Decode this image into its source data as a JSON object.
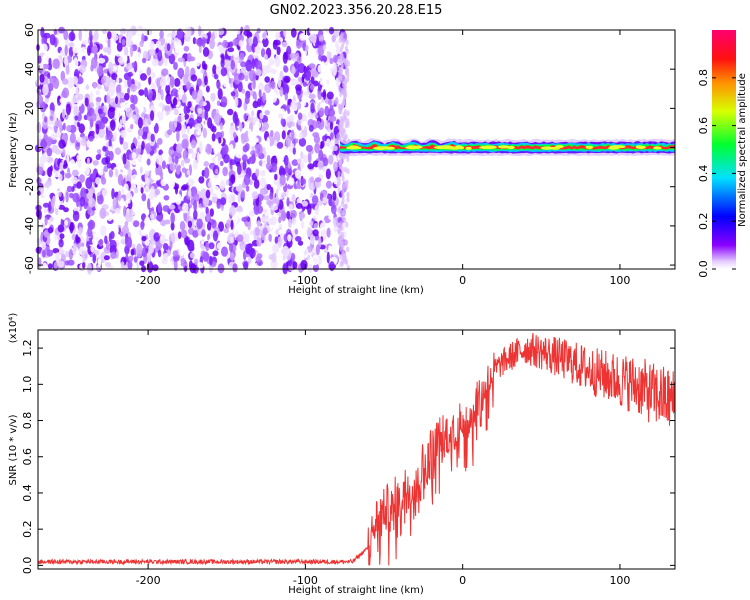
{
  "figure": {
    "title": "GN02.2023.356.20.28.E15"
  },
  "chart_data": [
    {
      "type": "heatmap",
      "xlabel": "Height of straight line (km)",
      "ylabel": "Frequency (Hz)",
      "xlim": [
        -270,
        135
      ],
      "ylim": [
        -62,
        60
      ],
      "x_ticks": [
        -200,
        -100,
        0,
        100
      ],
      "x_tick_labels": [
        "-200",
        "-100",
        "0",
        "100"
      ],
      "y_ticks": [
        -60,
        -40,
        -20,
        0,
        20,
        40,
        60
      ],
      "y_tick_labels": [
        "-60",
        "-40",
        "-20",
        "0",
        "20",
        "40",
        "60"
      ],
      "noise_region_x": [
        -270,
        -75
      ],
      "signal_band": {
        "x_start": -78,
        "x_end": 135,
        "center_frequency": 0,
        "amplitude_profile": [
          {
            "x": -78,
            "amp": 0.5
          },
          {
            "x": -60,
            "amp": 0.7
          },
          {
            "x": -40,
            "amp": 0.8
          },
          {
            "x": -20,
            "amp": 0.85
          },
          {
            "x": 0,
            "amp": 0.95
          },
          {
            "x": 50,
            "amp": 0.98
          },
          {
            "x": 100,
            "amp": 0.95
          },
          {
            "x": 135,
            "amp": 0.9
          }
        ]
      },
      "colorbar": {
        "label": "Normalized spectral amplitude",
        "range": [
          0,
          1
        ],
        "ticks": [
          0.0,
          0.2,
          0.4,
          0.6,
          0.8
        ],
        "tick_labels": [
          "0.0",
          "0.2",
          "0.4",
          "0.6",
          "0.8"
        ]
      }
    },
    {
      "type": "line",
      "xlabel": "Height of straight line (km)",
      "ylabel": "SNR (10 * v/v)",
      "y_multiplier_label": "(x10⁴)",
      "xlim": [
        -270,
        135
      ],
      "ylim": [
        -0.02,
        1.3
      ],
      "x_ticks": [
        -200,
        -100,
        0,
        100
      ],
      "x_tick_labels": [
        "-200",
        "-100",
        "0",
        "100"
      ],
      "y_ticks": [
        0.0,
        0.2,
        0.4,
        0.6,
        0.8,
        1.0,
        1.2
      ],
      "y_tick_labels": [
        "0.0",
        "0.2",
        "0.4",
        "0.6",
        "0.8",
        "1.0",
        "1.2"
      ],
      "series": [
        {
          "color": "#ee3333",
          "x": [
            -270,
            -200,
            -100,
            -70,
            -60,
            -55,
            -50,
            -45,
            -40,
            -35,
            -30,
            -25,
            -20,
            -15,
            -10,
            -5,
            0,
            5,
            10,
            15,
            20,
            30,
            40,
            50,
            60,
            70,
            80,
            90,
            100,
            110,
            120,
            130,
            135
          ],
          "values": [
            0.02,
            0.02,
            0.02,
            0.02,
            0.1,
            0.25,
            0.3,
            0.32,
            0.38,
            0.45,
            0.48,
            0.55,
            0.62,
            0.7,
            0.72,
            0.75,
            0.78,
            0.85,
            0.92,
            1.0,
            1.08,
            1.15,
            1.2,
            1.18,
            1.15,
            1.12,
            1.08,
            1.05,
            1.02,
            1.0,
            0.95,
            0.92,
            0.9
          ]
        }
      ]
    }
  ]
}
